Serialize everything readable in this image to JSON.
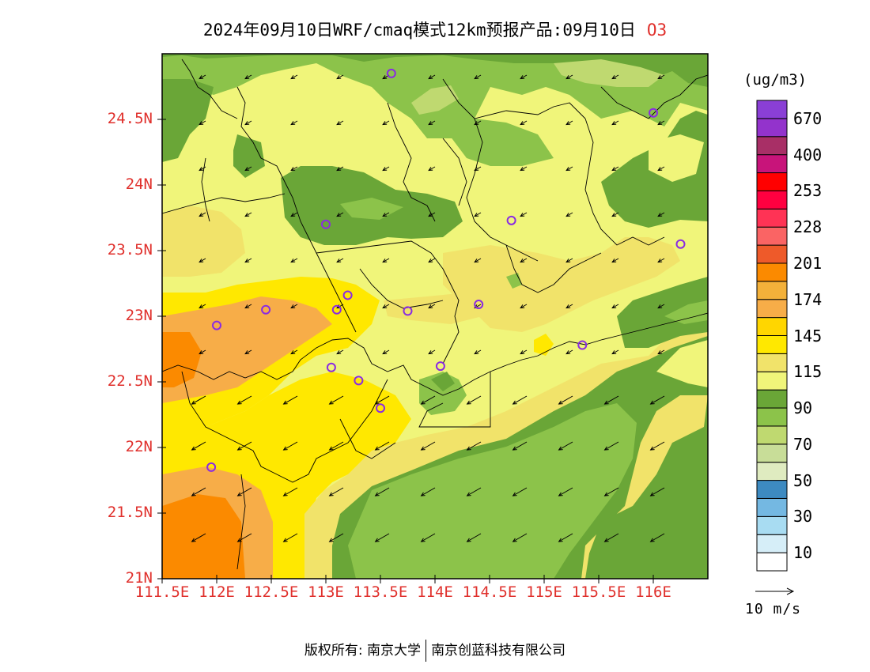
{
  "title": {
    "main": "2024年09月10日WRF/cmaq模式12km预报产品:09月10日",
    "species": "O3"
  },
  "map": {
    "lat_ticks": [
      {
        "lat": 24.5,
        "label": "24.5N"
      },
      {
        "lat": 24.0,
        "label": "24N"
      },
      {
        "lat": 23.5,
        "label": "23.5N"
      },
      {
        "lat": 23.0,
        "label": "23N"
      },
      {
        "lat": 22.5,
        "label": "22.5N"
      },
      {
        "lat": 22.0,
        "label": "22N"
      },
      {
        "lat": 21.5,
        "label": "21.5N"
      },
      {
        "lat": 21.0,
        "label": "21N"
      }
    ],
    "lon_ticks": [
      {
        "lon": 111.5,
        "label": "111.5E"
      },
      {
        "lon": 112.0,
        "label": "112E"
      },
      {
        "lon": 112.5,
        "label": "112.5E"
      },
      {
        "lon": 113.0,
        "label": "113E"
      },
      {
        "lon": 113.5,
        "label": "113.5E"
      },
      {
        "lon": 114.0,
        "label": "114E"
      },
      {
        "lon": 114.5,
        "label": "114.5E"
      },
      {
        "lon": 115.0,
        "label": "115E"
      },
      {
        "lon": 115.5,
        "label": "115.5E"
      },
      {
        "lon": 116.0,
        "label": "116E"
      }
    ],
    "extent": {
      "lon_min": 111.5,
      "lon_max": 116.5,
      "lat_min": 21.0,
      "lat_max": 25.0
    },
    "wind_direction": "northeasterly (arrows point south-west)",
    "stations": [
      {
        "lon": 113.6,
        "lat": 24.85
      },
      {
        "lon": 116.0,
        "lat": 24.55
      },
      {
        "lon": 113.0,
        "lat": 23.7
      },
      {
        "lon": 114.7,
        "lat": 23.73
      },
      {
        "lon": 116.25,
        "lat": 23.55
      },
      {
        "lon": 112.0,
        "lat": 22.93
      },
      {
        "lon": 112.45,
        "lat": 23.05
      },
      {
        "lon": 113.1,
        "lat": 23.05
      },
      {
        "lon": 113.2,
        "lat": 23.16
      },
      {
        "lon": 113.75,
        "lat": 23.04
      },
      {
        "lon": 114.4,
        "lat": 23.09
      },
      {
        "lon": 115.35,
        "lat": 22.78
      },
      {
        "lon": 113.05,
        "lat": 22.61
      },
      {
        "lon": 113.3,
        "lat": 22.51
      },
      {
        "lon": 114.05,
        "lat": 22.62
      },
      {
        "lon": 113.5,
        "lat": 22.3
      },
      {
        "lon": 111.95,
        "lat": 21.85
      }
    ]
  },
  "colorbar": {
    "unit": "(ug/m3)",
    "colors": [
      "#ffffff",
      "#d6eef8",
      "#a8dcf2",
      "#74b8e2",
      "#3d8ac1",
      "#dfebc0",
      "#c8dd98",
      "#bfd970",
      "#8cc34a",
      "#6aa637",
      "#f0f57a",
      "#f1e36a",
      "#ffe800",
      "#ffd600",
      "#f7ad48",
      "#f4b13a",
      "#fb8a00",
      "#ee5a2a",
      "#fa6464",
      "#ff3355",
      "#ff0040",
      "#ff0000",
      "#c8147a",
      "#a82f66",
      "#9333cc",
      "#8a3fd6"
    ],
    "labels": [
      "10",
      "30",
      "50",
      "70",
      "90",
      "115",
      "145",
      "174",
      "201",
      "228",
      "253",
      "400",
      "670"
    ]
  },
  "vector_legend": "10 m/s",
  "footer": {
    "left": "版权所有: 南京大学",
    "right": "南京创蓝科技有限公司"
  }
}
